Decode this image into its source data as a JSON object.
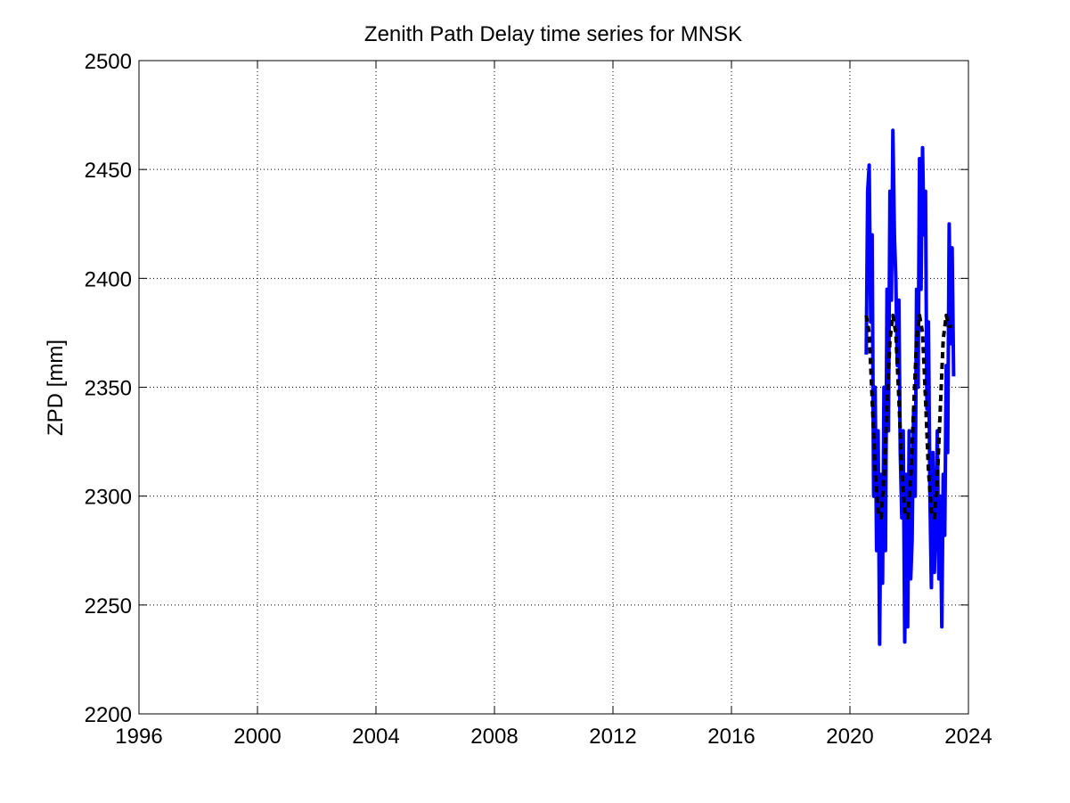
{
  "chart_data": {
    "type": "line",
    "title": "Zenith Path Delay time series for MNSK",
    "xlabel": "",
    "ylabel": "ZPD [mm]",
    "xlim": [
      1996,
      2024
    ],
    "ylim": [
      2200,
      2500
    ],
    "xticks": [
      1996,
      2000,
      2004,
      2008,
      2012,
      2016,
      2020,
      2024
    ],
    "yticks": [
      2200,
      2250,
      2300,
      2350,
      2400,
      2450,
      2500
    ],
    "grid": true,
    "legend": "none",
    "series": [
      {
        "style": "solid",
        "color": "#0000ff",
        "x": [
          2020.55,
          2020.6,
          2020.65,
          2020.7,
          2020.75,
          2020.8,
          2020.85,
          2020.9,
          2020.95,
          2021.0,
          2021.05,
          2021.1,
          2021.15,
          2021.2,
          2021.25,
          2021.3,
          2021.35,
          2021.4,
          2021.45,
          2021.5,
          2021.55,
          2021.6,
          2021.65,
          2021.7,
          2021.75,
          2021.8,
          2021.85,
          2021.9,
          2021.95,
          2022.0,
          2022.05,
          2022.1,
          2022.15,
          2022.2,
          2022.25,
          2022.3,
          2022.35,
          2022.4,
          2022.45,
          2022.5,
          2022.55,
          2022.6,
          2022.65,
          2022.7,
          2022.75,
          2022.8,
          2022.85,
          2022.9,
          2022.95,
          2023.0,
          2023.05,
          2023.1,
          2023.15,
          2023.2,
          2023.25,
          2023.3,
          2023.35,
          2023.4,
          2023.45,
          2023.5
        ],
        "y": [
          2365,
          2440,
          2452,
          2380,
          2420,
          2300,
          2350,
          2275,
          2330,
          2232,
          2310,
          2260,
          2350,
          2275,
          2395,
          2330,
          2440,
          2390,
          2468,
          2420,
          2400,
          2360,
          2390,
          2320,
          2290,
          2330,
          2233,
          2310,
          2240,
          2330,
          2262,
          2280,
          2340,
          2300,
          2395,
          2350,
          2455,
          2395,
          2460,
          2420,
          2440,
          2340,
          2380,
          2300,
          2258,
          2320,
          2265,
          2290,
          2330,
          2262,
          2300,
          2240,
          2310,
          2282,
          2360,
          2320,
          2425,
          2370,
          2414,
          2355
        ]
      },
      {
        "style": "dashed",
        "color": "#000000",
        "x": [
          2020.55,
          2020.65,
          2020.75,
          2020.85,
          2020.95,
          2021.05,
          2021.15,
          2021.25,
          2021.35,
          2021.45,
          2021.55,
          2021.65,
          2021.75,
          2021.85,
          2021.95,
          2022.05,
          2022.15,
          2022.25,
          2022.35,
          2022.45,
          2022.55,
          2022.65,
          2022.75,
          2022.85,
          2022.95,
          2023.05,
          2023.15,
          2023.25,
          2023.35,
          2023.45
        ],
        "y": [
          2383,
          2375,
          2345,
          2312,
          2293,
          2290,
          2308,
          2340,
          2372,
          2383,
          2375,
          2345,
          2312,
          2293,
          2290,
          2308,
          2340,
          2372,
          2383,
          2375,
          2345,
          2312,
          2293,
          2290,
          2308,
          2340,
          2372,
          2383,
          2378,
          2378
        ]
      }
    ]
  }
}
